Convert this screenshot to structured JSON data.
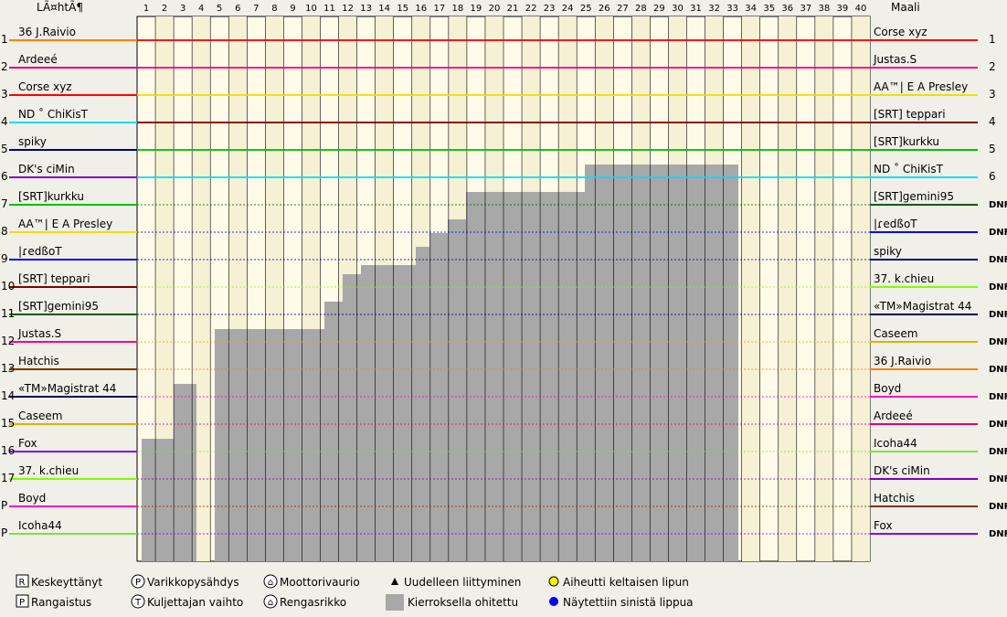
{
  "header": {
    "start": "LÃ¤htÃ¶",
    "finish": "Maali"
  },
  "laps": [
    1,
    2,
    3,
    4,
    5,
    6,
    7,
    8,
    9,
    10,
    11,
    12,
    13,
    14,
    15,
    16,
    17,
    18,
    19,
    20,
    21,
    22,
    23,
    24,
    25,
    26,
    27,
    28,
    29,
    30,
    31,
    32,
    33,
    34,
    35,
    36,
    37,
    38,
    39,
    40
  ],
  "start_grid": [
    {
      "pos": "1",
      "name": "36 J.Raivio",
      "color": "#ff8000"
    },
    {
      "pos": "2",
      "name": "Ardeeé",
      "color": "#e0006f"
    },
    {
      "pos": "3",
      "name": "Corse xyz",
      "color": "#ff0000"
    },
    {
      "pos": "4",
      "name": "ND ˚ ChiKisT",
      "color": "#00e0ff"
    },
    {
      "pos": "5",
      "name": "spiky",
      "color": "#000080"
    },
    {
      "pos": "6",
      "name": "DK's ciMin",
      "color": "#8000c0"
    },
    {
      "pos": "7",
      "name": "[SRT]kurkku",
      "color": "#00c000"
    },
    {
      "pos": "8",
      "name": "AA™| E A Presley",
      "color": "#f0e000"
    },
    {
      "pos": "9",
      "name": "|ɾedßoT",
      "color": "#0000ff"
    },
    {
      "pos": "10",
      "name": "[SRT] teppari",
      "color": "#800000"
    },
    {
      "pos": "11",
      "name": "[SRT]gemini95",
      "color": "#006000"
    },
    {
      "pos": "12",
      "name": "Justas.S",
      "color": "#ff0080"
    },
    {
      "pos": "13",
      "name": "Hatchis",
      "color": "#803000"
    },
    {
      "pos": "14",
      "name": "«TM»Magistrat 44",
      "color": "#000060"
    },
    {
      "pos": "15",
      "name": "Caseem",
      "color": "#e0b000"
    },
    {
      "pos": "16",
      "name": "Fox",
      "color": "#8000ff"
    },
    {
      "pos": "17",
      "name": "37. k.chieu",
      "color": "#80ff00"
    },
    {
      "pos": "P",
      "name": "Boyd",
      "color": "#ff00c0"
    },
    {
      "pos": "P",
      "name": "Icoha44",
      "color": "#80e040"
    }
  ],
  "finish": [
    {
      "name": "Corse xyz",
      "result": "1",
      "color": "#ff0000"
    },
    {
      "name": "Justas.S",
      "result": "2",
      "color": "#ff0080"
    },
    {
      "name": "AA™| E A Presley",
      "result": "3",
      "color": "#f0e000"
    },
    {
      "name": "[SRT] teppari",
      "result": "4",
      "color": "#800000"
    },
    {
      "name": "[SRT]kurkku",
      "result": "5",
      "color": "#00c000"
    },
    {
      "name": "ND ˚ ChiKisT",
      "result": "6",
      "color": "#00e0ff"
    },
    {
      "name": "[SRT]gemini95",
      "result": "DNF",
      "color": "#006000"
    },
    {
      "name": "|ɾedßoT",
      "result": "DNF",
      "color": "#0000ff"
    },
    {
      "name": "spiky",
      "result": "DNF",
      "color": "#000080"
    },
    {
      "name": "37. k.chieu",
      "result": "DNF",
      "color": "#80ff00"
    },
    {
      "name": "«TM»Magistrat 44",
      "result": "DNF",
      "color": "#000060"
    },
    {
      "name": "Caseem",
      "result": "DNF",
      "color": "#e0b000"
    },
    {
      "name": "36 J.Raivio",
      "result": "DNF",
      "color": "#ff8000"
    },
    {
      "name": "Boyd",
      "result": "DNF",
      "color": "#ff00c0"
    },
    {
      "name": "Ardeeé",
      "result": "DNF",
      "color": "#e0006f"
    },
    {
      "name": "Icoha44",
      "result": "DNF",
      "color": "#80e040"
    },
    {
      "name": "DK's ciMin",
      "result": "DNF",
      "color": "#8000c0"
    },
    {
      "name": "Hatchis",
      "result": "DNF",
      "color": "#803000"
    },
    {
      "name": "Fox",
      "result": "DNF",
      "color": "#8000ff"
    }
  ],
  "legend": [
    "Keskeyttänyt",
    "Rangaistus",
    "Varikkopysähdys",
    "Kuljettajan vaihto",
    "Moottorivaurio",
    "Rengasrikko",
    "Uudelleen liittyminen",
    "Kierroksella ohitettu",
    "Aiheutti keltaisen lipun",
    "Näytettiin sinistä lippua"
  ]
}
